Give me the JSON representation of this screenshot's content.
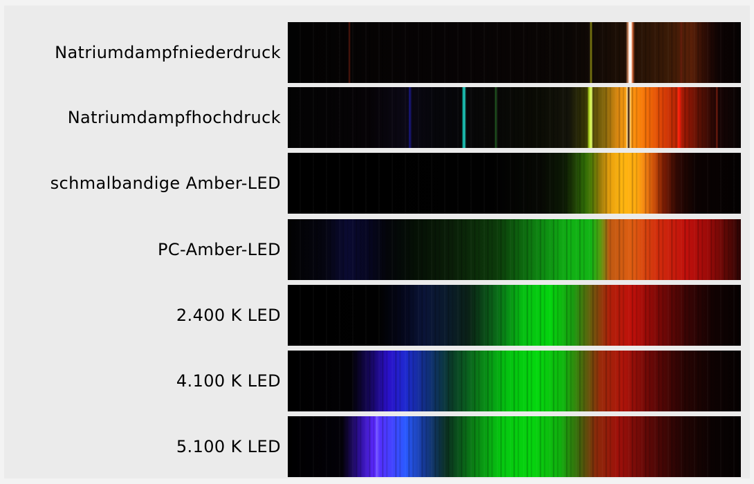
{
  "spectra": [
    {
      "label": "Natriumdampfniederdruck"
    },
    {
      "label": "Natriumdampfhochdruck"
    },
    {
      "label": "schmalbandige Amber-LED"
    },
    {
      "label": "PC-Amber-LED"
    },
    {
      "label": "2.400 K LED"
    },
    {
      "label": "4.100 K LED"
    },
    {
      "label": "5.100 K LED"
    }
  ]
}
